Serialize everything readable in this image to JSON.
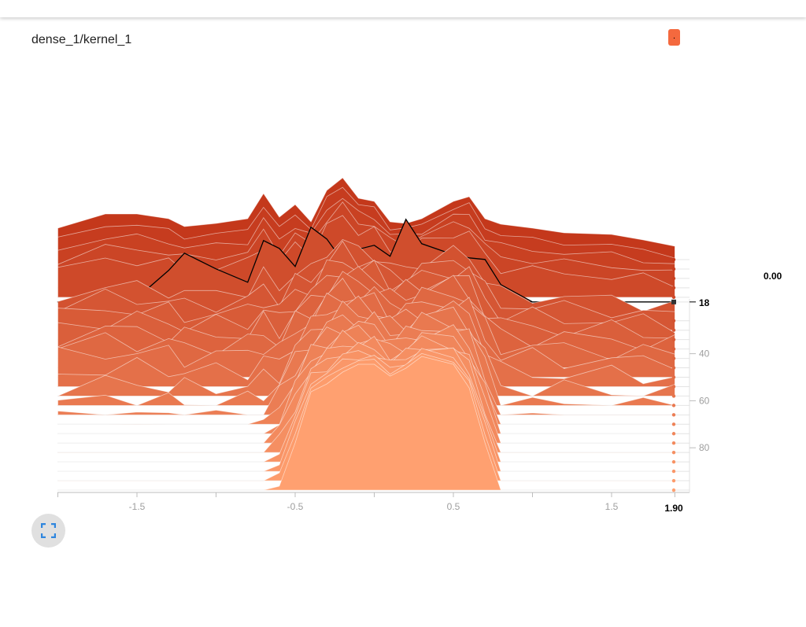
{
  "title": "dense_1/kernel_1",
  "tag_label": ".",
  "hover_value": "0.00",
  "hover_step": "18",
  "hover_x": "1.90",
  "icons": {
    "expand": "fullscreen-expand-icon"
  },
  "colors": {
    "oldest": "#c4381b",
    "newest": "#ffa070",
    "outline": "#ffffff",
    "hover_line": "#000000",
    "accent": "#f4693e"
  },
  "chart_data": {
    "type": "area",
    "subtype": "tensorboard-histogram-offset",
    "title": "dense_1/kernel_1",
    "x_ticks": [
      {
        "label": "-1.5",
        "value": -1.5
      },
      {
        "label": "-0.5",
        "value": -0.5
      },
      {
        "label": "0.5",
        "value": 0.5
      },
      {
        "label": "1.5",
        "value": 1.5
      }
    ],
    "y_ticks": [
      {
        "label": "40",
        "value": 40
      },
      {
        "label": "60",
        "value": 60
      },
      {
        "label": "80",
        "value": 80
      }
    ],
    "x_range": [
      -2.0,
      1.9
    ],
    "step_range": [
      0,
      99
    ],
    "x_grid": [
      -2.0,
      -1.7,
      -1.5,
      -1.3,
      -1.2,
      -1.0,
      -0.8,
      -0.7,
      -0.6,
      -0.5,
      -0.4,
      -0.3,
      -0.2,
      -0.1,
      0.0,
      0.1,
      0.2,
      0.3,
      0.5,
      0.6,
      0.7,
      0.8,
      1.0,
      1.2,
      1.5,
      1.7,
      1.9
    ],
    "steps": [
      0,
      4,
      8,
      12,
      16,
      18,
      26,
      30,
      34,
      38,
      42,
      46,
      50,
      54,
      58,
      62,
      66,
      70,
      74,
      78,
      82,
      86,
      90,
      94,
      98
    ],
    "oldest_counts": [
      40,
      58,
      58,
      52,
      42,
      46,
      52,
      84,
      54,
      70,
      48,
      88,
      104,
      78,
      74,
      48,
      46,
      52,
      74,
      80,
      52,
      45,
      40,
      34,
      32,
      25,
      17
    ],
    "newest_counts": [
      0,
      0,
      0,
      0,
      0,
      0,
      0,
      0,
      5,
      60,
      125,
      135,
      150,
      160,
      160,
      145,
      155,
      170,
      160,
      130,
      60,
      0,
      0,
      0,
      0,
      0,
      0
    ],
    "hover_series": {
      "step": 18,
      "counts": [
        0,
        0,
        5,
        40,
        62,
        42,
        25,
        78,
        68,
        45,
        95,
        80,
        52,
        67,
        72,
        58,
        105,
        74,
        60,
        56,
        54,
        22,
        0,
        0,
        0,
        0,
        0
      ]
    }
  }
}
